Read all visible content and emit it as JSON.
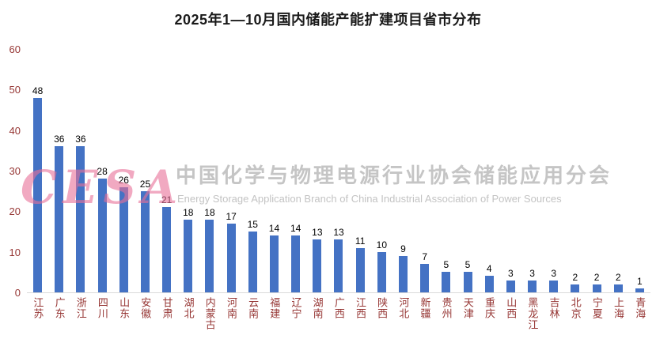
{
  "watermark": {
    "logo": "CESA",
    "cn": "中国化学与物理电源行业协会储能应用分会",
    "en": "Energy Storage Application Branch of China Industrial Association of Power Sources"
  },
  "chart_data": {
    "type": "bar",
    "title": "2025年1—10月国内储能产能扩建项目省市分布",
    "categories": [
      "江苏",
      "广东",
      "浙江",
      "四川",
      "山东",
      "安徽",
      "甘肃",
      "湖北",
      "内蒙古",
      "河南",
      "云南",
      "福建",
      "辽宁",
      "湖南",
      "广西",
      "江西",
      "陕西",
      "河北",
      "新疆",
      "贵州",
      "天津",
      "重庆",
      "山西",
      "黑龙江",
      "吉林",
      "北京",
      "宁夏",
      "上海",
      "青海"
    ],
    "values": [
      48,
      36,
      36,
      28,
      26,
      25,
      21,
      18,
      18,
      17,
      15,
      14,
      14,
      13,
      13,
      11,
      10,
      9,
      7,
      5,
      5,
      4,
      3,
      3,
      3,
      2,
      2,
      2,
      1
    ],
    "xlabel": "",
    "ylabel": "",
    "ylim": [
      0,
      60
    ],
    "yticks": [
      0,
      10,
      20,
      30,
      40,
      50,
      60
    ],
    "grid": false,
    "legend": false,
    "data_labels": true,
    "bar_color": "#4472C4",
    "axis_label_color": "#963634",
    "data_label_color": "#000000"
  }
}
